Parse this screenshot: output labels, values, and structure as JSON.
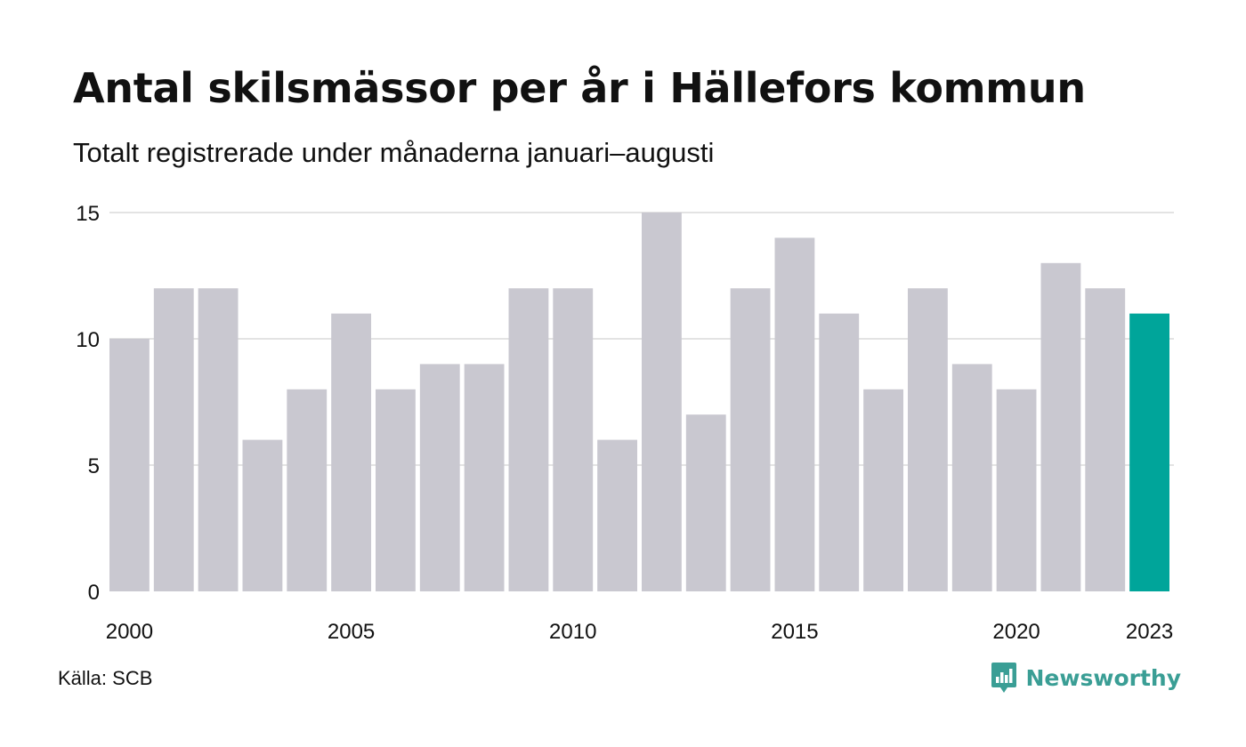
{
  "title": "Antal skilsmässor per år i Hällefors kommun",
  "subtitle": "Totalt registrerade under månaderna januari–augusti",
  "source": "Källa: SCB",
  "brand": {
    "name": "Newsworthy",
    "icon": "newsworthy-logo-icon"
  },
  "colors": {
    "bar": "#c9c8d0",
    "highlight": "#00a59a",
    "grid": "#e3e3e3",
    "text": "#111111",
    "brand": "#3a9e95"
  },
  "chart_data": {
    "type": "bar",
    "categories": [
      "2000",
      "2001",
      "2002",
      "2003",
      "2004",
      "2005",
      "2006",
      "2007",
      "2008",
      "2009",
      "2010",
      "2011",
      "2012",
      "2013",
      "2014",
      "2015",
      "2016",
      "2017",
      "2018",
      "2019",
      "2020",
      "2021",
      "2022",
      "2023"
    ],
    "values": [
      10,
      12,
      12,
      6,
      8,
      11,
      8,
      9,
      9,
      12,
      12,
      6,
      15,
      7,
      12,
      14,
      11,
      8,
      12,
      9,
      8,
      13,
      12,
      11
    ],
    "highlight": "2023",
    "x_tick_labels": [
      "2000",
      "2005",
      "2010",
      "2015",
      "2020",
      "2023"
    ],
    "y_ticks": [
      0,
      5,
      10,
      15
    ],
    "ylim": [
      0,
      15
    ],
    "grid": true,
    "legend": "none",
    "xlabel": "",
    "ylabel": ""
  }
}
